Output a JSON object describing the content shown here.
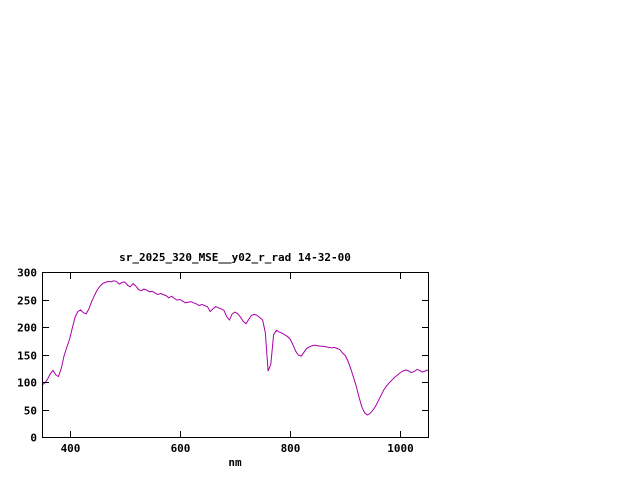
{
  "window": {
    "background_color": "#ffffff"
  },
  "chart": {
    "title": "sr_2025_320_MSE__y02_r_rad 14-32-00",
    "xlabel": "nm",
    "line_color": "#aa00aa",
    "axis_color": "#000000",
    "text_color": "#000000"
  },
  "chart_data": {
    "type": "line",
    "title": "sr_2025_320_MSE__y02_r_rad 14-32-00",
    "xlabel": "nm",
    "ylabel": "",
    "xlim": [
      350,
      1050
    ],
    "ylim": [
      0,
      300
    ],
    "xticks": [
      400,
      600,
      800,
      1000
    ],
    "yticks": [
      0,
      50,
      100,
      150,
      200,
      250,
      300
    ],
    "grid": false,
    "legend_position": "none",
    "series": [
      {
        "name": "sr_2025_320_MSE__y02_r_rad",
        "color": "#aa00aa",
        "x": [
          350,
          355,
          360,
          365,
          370,
          375,
          380,
          385,
          390,
          395,
          400,
          405,
          410,
          415,
          420,
          425,
          430,
          435,
          440,
          445,
          450,
          455,
          460,
          465,
          470,
          475,
          480,
          485,
          490,
          495,
          500,
          505,
          510,
          515,
          520,
          525,
          530,
          535,
          540,
          545,
          550,
          555,
          560,
          565,
          570,
          575,
          580,
          585,
          590,
          595,
          600,
          605,
          610,
          615,
          620,
          625,
          630,
          635,
          640,
          645,
          650,
          655,
          660,
          665,
          670,
          675,
          680,
          685,
          690,
          695,
          700,
          705,
          710,
          715,
          720,
          725,
          730,
          735,
          740,
          745,
          750,
          755,
          760,
          765,
          770,
          775,
          780,
          785,
          790,
          795,
          800,
          805,
          810,
          815,
          820,
          825,
          830,
          835,
          840,
          845,
          850,
          855,
          860,
          865,
          870,
          875,
          880,
          885,
          890,
          895,
          900,
          905,
          910,
          915,
          920,
          925,
          930,
          935,
          940,
          945,
          950,
          955,
          960,
          965,
          970,
          975,
          980,
          985,
          990,
          995,
          1000,
          1005,
          1010,
          1015,
          1020,
          1025,
          1030,
          1035,
          1040,
          1045,
          1050
        ],
        "y": [
          95,
          98,
          105,
          115,
          121,
          113,
          110,
          125,
          148,
          163,
          178,
          198,
          218,
          228,
          231,
          226,
          224,
          233,
          246,
          257,
          267,
          274,
          279,
          281,
          283,
          282,
          284,
          283,
          278,
          281,
          282,
          276,
          273,
          279,
          275,
          268,
          266,
          269,
          267,
          264,
          265,
          262,
          259,
          261,
          259,
          257,
          253,
          256,
          252,
          249,
          250,
          247,
          244,
          245,
          246,
          244,
          242,
          239,
          241,
          239,
          237,
          228,
          233,
          237,
          235,
          233,
          230,
          219,
          213,
          224,
          227,
          224,
          218,
          210,
          206,
          214,
          221,
          223,
          221,
          217,
          213,
          190,
          120,
          132,
          186,
          194,
          191,
          189,
          186,
          183,
          178,
          168,
          156,
          149,
          147,
          154,
          161,
          164,
          166,
          167,
          166,
          165,
          165,
          164,
          163,
          162,
          163,
          161,
          159,
          153,
          148,
          138,
          124,
          108,
          92,
          72,
          55,
          44,
          40,
          43,
          49,
          56,
          66,
          76,
          86,
          93,
          99,
          104,
          109,
          113,
          117,
          120,
          122,
          120,
          117,
          119,
          123,
          121,
          118,
          120,
          122
        ]
      }
    ]
  }
}
